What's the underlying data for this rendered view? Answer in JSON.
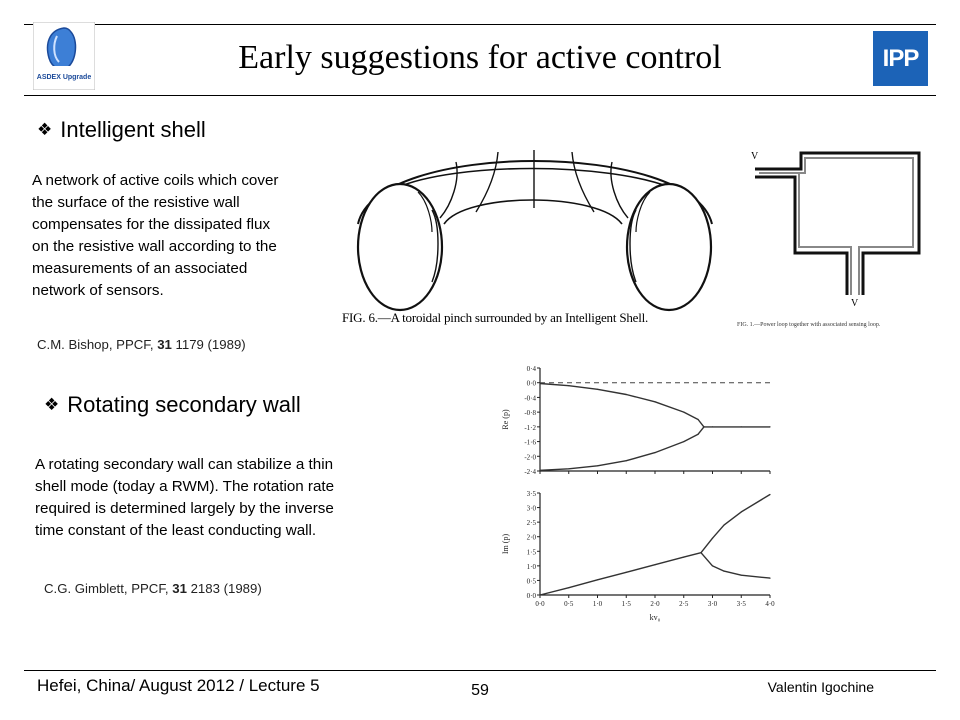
{
  "header": {
    "title": "Early suggestions for active control",
    "logo_left_text": "ASDEX Upgrade",
    "logo_right_text": "IPP"
  },
  "section1": {
    "heading": "Intelligent shell",
    "paragraph_lines": [
      "A network of active coils which cover",
      "the surface of the resistive wall",
      "compensates for the dissipated flux",
      "on the resistive wall according to  the",
      "measurements of an associated",
      "network of sensors."
    ],
    "ref_prefix": "C.M. Bishop, PPCF, ",
    "ref_volume": "31",
    "ref_suffix": " 1179 (1989)",
    "fig_torus_caption": "FIG. 6.—A toroidal pinch surrounded by an Intelligent Shell.",
    "fig_loop_caption": "FIG. 1.—Power loop together with associated sensing loop.",
    "fig_loop_label_top": "V",
    "fig_loop_label_bottom": "V"
  },
  "section2": {
    "heading": "Rotating secondary wall",
    "paragraph_lines": [
      "A rotating secondary wall can stabilize a thin",
      "shell mode (today a RWM). The rotation rate",
      "required is determined largely by the inverse",
      "time constant of the least conducting wall."
    ],
    "ref_prefix": "C.G. Gimblett, PPCF, ",
    "ref_volume": "31",
    "ref_suffix": " 2183 (1989)"
  },
  "chart_data": [
    {
      "type": "line",
      "title": "",
      "xlabel": "",
      "ylabel": "Re (p)",
      "ylim": [
        -2.4,
        0.4
      ],
      "yticks": [
        0.4,
        0.0,
        -0.4,
        -0.8,
        -1.2,
        -1.6,
        -2.0,
        -2.4
      ],
      "ytick_labels": [
        "0·4",
        "0·0",
        "-0·4",
        "-0·8",
        "-1·2",
        "-1·6",
        "-2·0",
        "-2·4"
      ],
      "xlim": [
        0.0,
        4.0
      ],
      "reference_line": {
        "y": 0.0,
        "style": "dashed"
      },
      "series": [
        {
          "x": [
            0.0,
            0.5,
            1.0,
            1.5,
            2.0,
            2.5,
            2.75,
            2.85
          ],
          "values": [
            -0.02,
            -0.08,
            -0.18,
            -0.32,
            -0.52,
            -0.8,
            -1.0,
            -1.2
          ]
        },
        {
          "x": [
            0.0,
            0.5,
            1.0,
            1.5,
            2.0,
            2.5,
            2.75,
            2.85
          ],
          "values": [
            -2.38,
            -2.34,
            -2.26,
            -2.12,
            -1.9,
            -1.6,
            -1.4,
            -1.2
          ]
        },
        {
          "x": [
            2.85,
            3.0,
            3.5,
            4.0
          ],
          "values": [
            -1.2,
            -1.2,
            -1.2,
            -1.2
          ]
        }
      ]
    },
    {
      "type": "line",
      "title": "",
      "xlabel": "kv₀",
      "ylabel": "Im (p)",
      "ylim": [
        0.0,
        3.5
      ],
      "yticks": [
        0.0,
        0.5,
        1.0,
        1.5,
        2.0,
        2.5,
        3.0,
        3.5
      ],
      "ytick_labels": [
        "0·0",
        "0·5",
        "1·0",
        "1·5",
        "2·0",
        "2·5",
        "3·0",
        "3·5"
      ],
      "xlim": [
        0.0,
        4.0
      ],
      "xticks": [
        0.0,
        0.5,
        1.0,
        1.5,
        2.0,
        2.5,
        3.0,
        3.5,
        4.0
      ],
      "xtick_labels": [
        "0·0",
        "0·5",
        "1·0",
        "1·5",
        "2·0",
        "2·5",
        "3·0",
        "3·5",
        "4·0"
      ],
      "series": [
        {
          "x": [
            0.0,
            0.5,
            1.0,
            1.5,
            2.0,
            2.5,
            2.8
          ],
          "values": [
            0.0,
            0.25,
            0.52,
            0.78,
            1.04,
            1.3,
            1.45
          ]
        },
        {
          "x": [
            2.8,
            3.0,
            3.2,
            3.5,
            4.0
          ],
          "values": [
            1.45,
            1.95,
            2.4,
            2.85,
            3.45
          ]
        },
        {
          "x": [
            2.8,
            3.0,
            3.2,
            3.5,
            4.0
          ],
          "values": [
            1.45,
            1.0,
            0.82,
            0.68,
            0.58
          ]
        }
      ]
    }
  ],
  "footer": {
    "left": "Hefei, China/ August 2012 / Lecture 5",
    "page": "59",
    "right": "Valentin Igochine"
  }
}
